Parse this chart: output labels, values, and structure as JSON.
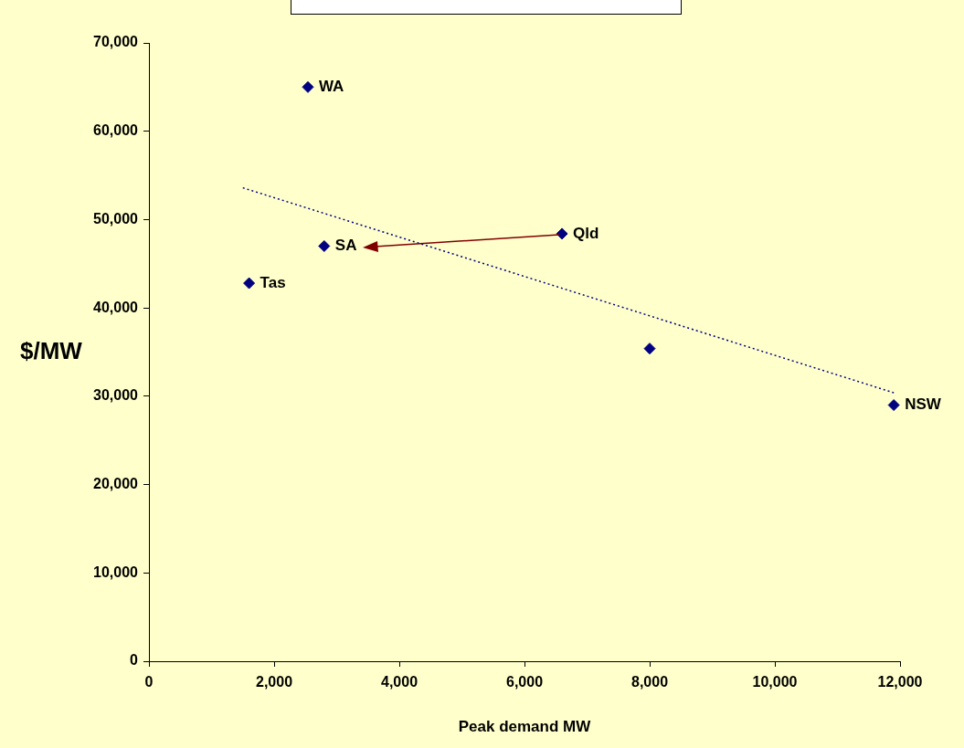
{
  "chart_data": {
    "type": "scatter",
    "xlabel": "Peak demand MW",
    "ylabel": "$/MW",
    "series": [
      {
        "color": "#000080",
        "x": [
          2540,
          2800,
          6600,
          1600,
          8000,
          11900
        ],
        "values": [
          65000,
          47000,
          48400,
          42800,
          35400,
          29000
        ],
        "marker": "diamond"
      },
      {
        "type": "line",
        "color": "#000080",
        "x": [
          1500,
          11900
        ],
        "values": [
          53600,
          30400
        ],
        "line_style": "dotted",
        "marker": "none"
      }
    ],
    "annotations": [
      {
        "text": "WA",
        "x": 2540,
        "y": 65000
      },
      {
        "text": "SA",
        "x": 2800,
        "y": 47000
      },
      {
        "text": "Qld",
        "x": 6600,
        "y": 48400
      },
      {
        "text": "Tas",
        "x": 1600,
        "y": 42800
      },
      {
        "text": "NSW",
        "x": 11900,
        "y": 29000
      }
    ],
    "xlim": [
      0,
      12000
    ],
    "xticks": [
      {
        "value": 0,
        "label": "0"
      },
      {
        "value": 2000,
        "label": "2,000"
      },
      {
        "value": 4000,
        "label": "4,000"
      },
      {
        "value": 6000,
        "label": "6,000"
      },
      {
        "value": 8000,
        "label": "8,000"
      },
      {
        "value": 10000,
        "label": "10,000"
      },
      {
        "value": 12000,
        "label": "12,000"
      }
    ],
    "ylim": [
      0,
      70000
    ],
    "yticks": [
      {
        "value": 0,
        "label": "0"
      },
      {
        "value": 10000,
        "label": "10,000"
      },
      {
        "value": 20000,
        "label": "20,000"
      },
      {
        "value": 30000,
        "label": "30,000"
      },
      {
        "value": 40000,
        "label": "40,000"
      },
      {
        "value": 50000,
        "label": "50,000"
      },
      {
        "value": 60000,
        "label": "60,000"
      },
      {
        "value": 70000,
        "label": "70,000"
      }
    ],
    "grid": false,
    "legend": false
  }
}
